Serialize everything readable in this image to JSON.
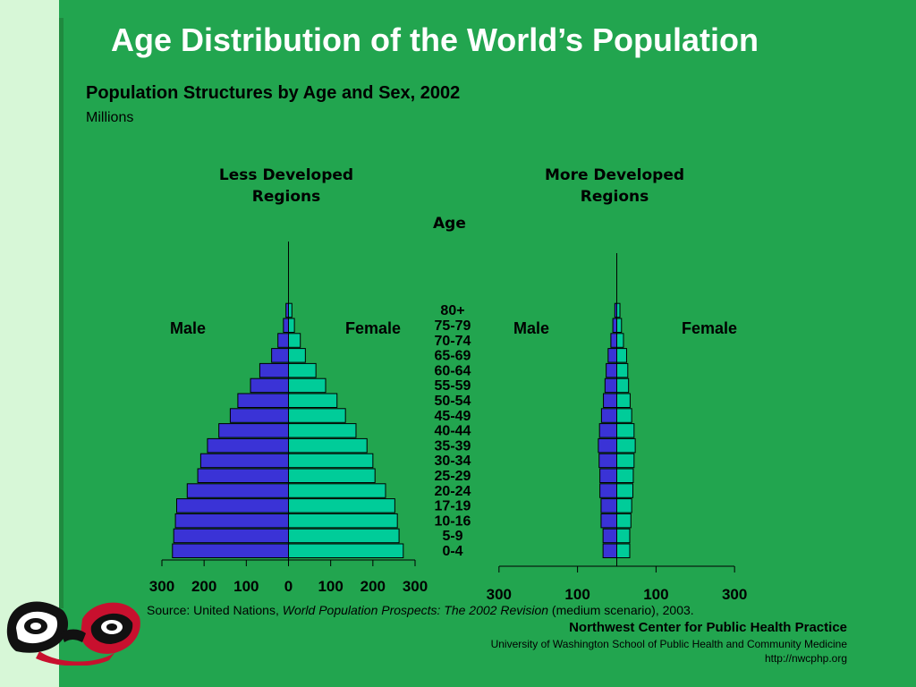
{
  "slide": {
    "title": "Age Distribution of the World’s Population",
    "subtitle": "Population Structures by Age and Sex, 2002",
    "units": "Millions",
    "age_heading": "Age",
    "less_developed_title_line1": "Less Developed",
    "less_developed_title_line2": "Regions",
    "more_developed_title_line1": "More Developed",
    "more_developed_title_line2": "Regions",
    "male_label": "Male",
    "female_label": "Female",
    "source_prefix": "Source: United Nations, ",
    "source_italic": "World Population Prospects: The 2002 Revision",
    "source_suffix": " (medium scenario), 2003.",
    "org_name": "Northwest Center for Public Health Practice",
    "institution": "University of Washington School of Public Health and Community Medicine",
    "url": "http://nwcphp.org",
    "logo_icon": "northwest-coast-art-logo-icon"
  },
  "colors": {
    "background": "#22a54f",
    "left_band": "#d7f7d7",
    "male_bar": "#3a33d6",
    "female_bar": "#00cc99",
    "title_text": "#ffffff"
  },
  "chart_data": [
    {
      "type": "bar",
      "orientation": "horizontal",
      "title": "Less Developed Regions",
      "ylabel": "Age",
      "categories": [
        "0-4",
        "5-9",
        "10-16",
        "17-19",
        "20-24",
        "25-29",
        "30-34",
        "35-39",
        "40-44",
        "45-49",
        "50-54",
        "55-59",
        "60-64",
        "65-69",
        "70-74",
        "75-79",
        "80+"
      ],
      "series": [
        {
          "name": "Male",
          "values": [
            275,
            272,
            268,
            265,
            240,
            215,
            208,
            192,
            165,
            138,
            120,
            90,
            68,
            40,
            25,
            12,
            6
          ]
        },
        {
          "name": "Female",
          "values": [
            272,
            262,
            258,
            252,
            230,
            205,
            200,
            186,
            160,
            135,
            115,
            88,
            65,
            40,
            28,
            14,
            8
          ]
        }
      ],
      "ticks": [
        "300",
        "200",
        "100",
        "0",
        "100",
        "200",
        "300"
      ],
      "xlim": [
        -300,
        300
      ],
      "grid": false
    },
    {
      "type": "bar",
      "orientation": "horizontal",
      "title": "More Developed Regions",
      "ylabel": "Age",
      "categories": [
        "0-4",
        "5-9",
        "10-16",
        "17-19",
        "20-24",
        "25-29",
        "30-34",
        "35-39",
        "40-44",
        "45-49",
        "50-54",
        "55-59",
        "60-64",
        "65-69",
        "70-74",
        "75-79",
        "80+"
      ],
      "series": [
        {
          "name": "Male",
          "values": [
            35,
            35,
            40,
            40,
            43,
            43,
            45,
            47,
            44,
            39,
            34,
            30,
            27,
            22,
            15,
            10,
            5
          ]
        },
        {
          "name": "Female",
          "values": [
            33,
            33,
            36,
            38,
            41,
            42,
            44,
            47,
            44,
            38,
            34,
            30,
            28,
            25,
            17,
            12,
            8
          ]
        }
      ],
      "ticks": [
        "300",
        "100",
        "100",
        "300"
      ],
      "xlim": [
        -300,
        300
      ],
      "grid": false
    }
  ]
}
